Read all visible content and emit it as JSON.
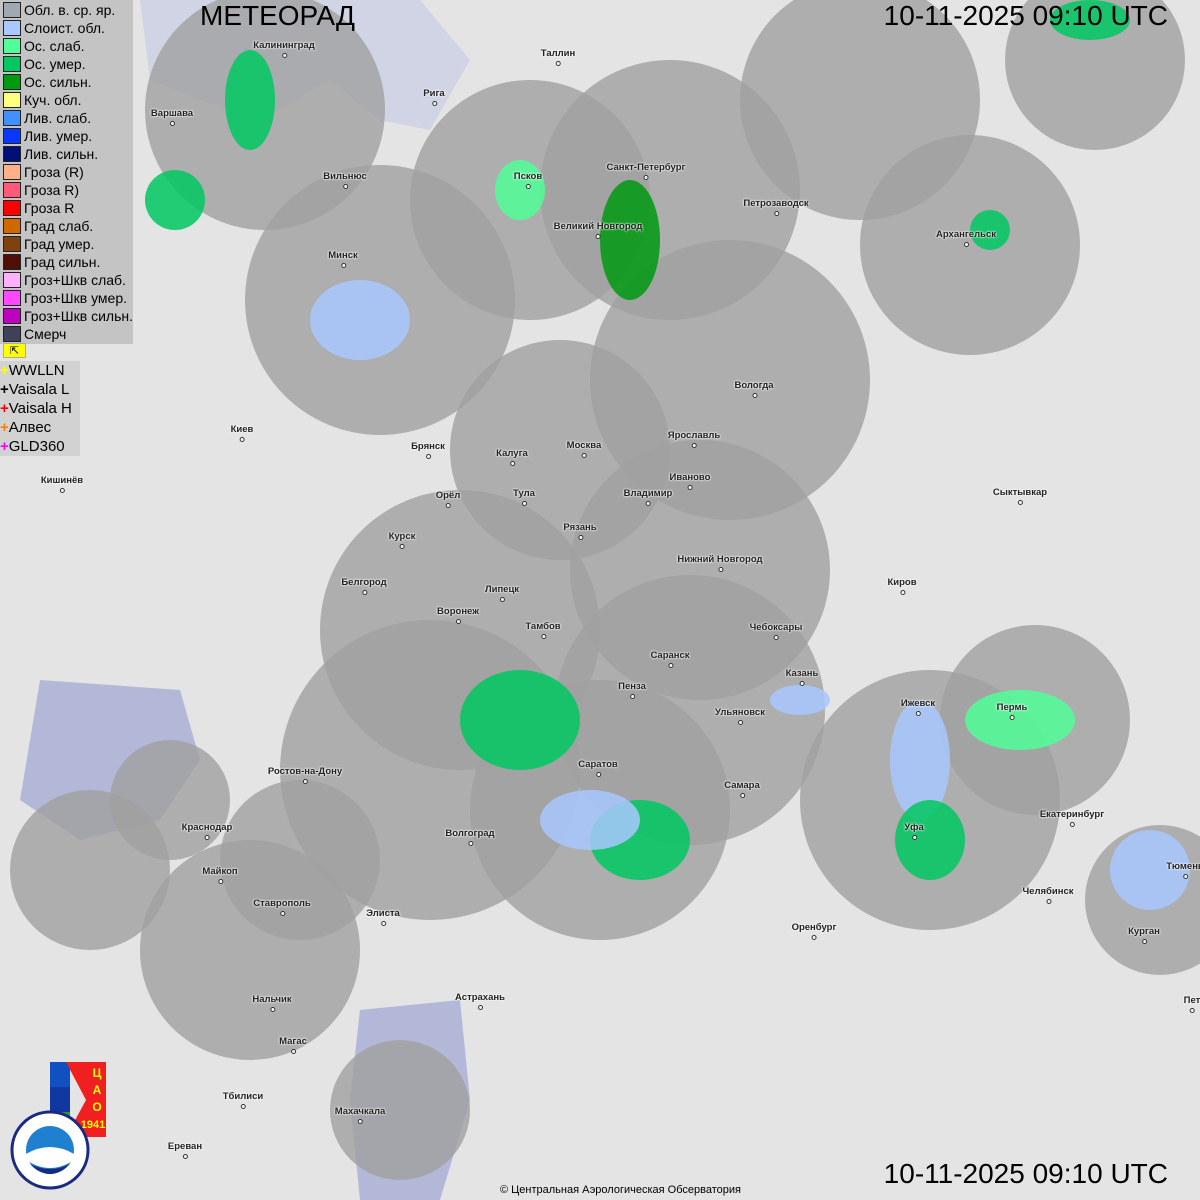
{
  "header": {
    "title": "МЕТЕОРАД",
    "timestamp": "10-11-2025  09:10 UTC"
  },
  "footer": {
    "timestamp": "10-11-2025  09:10 UTC",
    "copyright": "© Центральная Аэрологическая Обсерватория"
  },
  "legend": [
    {
      "label": "Обл. в. ср. яр.",
      "color": "#a0a8b0"
    },
    {
      "label": "Слоист. обл.",
      "color": "#a8c8ff"
    },
    {
      "label": "Ос. слаб.",
      "color": "#50ff98"
    },
    {
      "label": "Ос. умер.",
      "color": "#00c860"
    },
    {
      "label": "Ос. сильн.",
      "color": "#009a10"
    },
    {
      "label": "Куч. обл.",
      "color": "#ffff80"
    },
    {
      "label": "Лив. слаб.",
      "color": "#4090ff"
    },
    {
      "label": "Лив. умер.",
      "color": "#0838ff"
    },
    {
      "label": "Лив. сильн.",
      "color": "#001078"
    },
    {
      "label": "Гроза (R)",
      "color": "#ffb088"
    },
    {
      "label": "Гроза R)",
      "color": "#ff5878"
    },
    {
      "label": "Гроза R",
      "color": "#ff0000"
    },
    {
      "label": "Град слаб.",
      "color": "#d06800"
    },
    {
      "label": "Град умер.",
      "color": "#804010"
    },
    {
      "label": "Град сильн.",
      "color": "#501008"
    },
    {
      "label": "Гроз+Шкв слаб.",
      "color": "#ffb0ff"
    },
    {
      "label": "Гроз+Шкв умер.",
      "color": "#ff48ff"
    },
    {
      "label": "Гроз+Шкв сильн.",
      "color": "#c000c0"
    },
    {
      "label": "Смерч",
      "color": "#404058"
    }
  ],
  "lightning": [
    {
      "label": "WWLLN",
      "color": "#ffff00"
    },
    {
      "label": "Vaisala L",
      "color": "#000000"
    },
    {
      "label": "Vaisala H",
      "color": "#ff0000"
    },
    {
      "label": "Алвес",
      "color": "#ff8000"
    },
    {
      "label": "GLD360",
      "color": "#ff00ff"
    }
  ],
  "cities": [
    "Калининград",
    "Таллин",
    "Рига",
    "Варшава",
    "Вильнюс",
    "Псков",
    "Санкт-Петербург",
    "Петрозаводск",
    "Великий Новгород",
    "Архангельск",
    "Минск",
    "Вологда",
    "Киев",
    "Ярославль",
    "Брянск",
    "Калуга",
    "Москва",
    "Иваново",
    "Кишинёв",
    "Орёл",
    "Тула",
    "Владимир",
    "Сыктывкар",
    "Рязань",
    "Курск",
    "Нижний Новгород",
    "Киров",
    "Белгород",
    "Липецк",
    "Воронеж",
    "Тамбов",
    "Чебоксары",
    "Саранск",
    "Казань",
    "Пенза",
    "Ижевск",
    "Пермь",
    "Ульяновск",
    "Саратов",
    "Ростов-на-Дону",
    "Самара",
    "Екатеринбург",
    "Тюмень",
    "Краснодар",
    "Волгоград",
    "Уфа",
    "Майкоп",
    "Челябинск",
    "Ставрополь",
    "Элиста",
    "Оренбург",
    "Курган",
    "Нальчик",
    "Астрахань",
    "Пет",
    "Магас",
    "Тбилиси",
    "Махачкала",
    "Ереван"
  ],
  "logos": {
    "cao": "ЦАО 1941",
    "roshydromet": "РОСГИДРОМЕТ ROSHYDROMET"
  },
  "colors": {
    "coverage": "#a0a0a0",
    "land": "#e4e4e4",
    "water": "#b4b8d8"
  }
}
